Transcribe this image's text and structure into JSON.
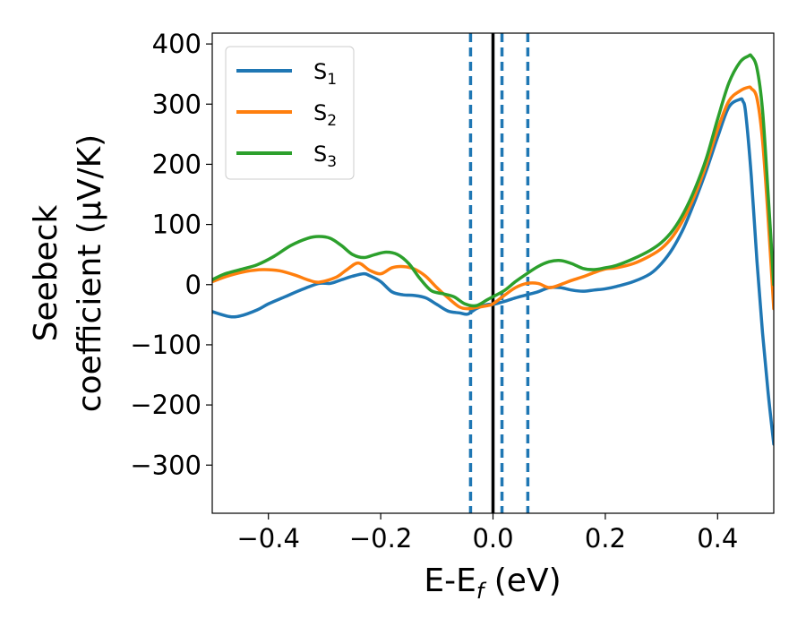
{
  "chart_data": {
    "type": "line",
    "xlabel": {
      "main": "E-E",
      "sub": "f",
      "suffix": " (eV)"
    },
    "ylabel": {
      "line1": "Seebeck",
      "line2": "coefficient  (μV/K)"
    },
    "xlim": [
      -0.5,
      0.5
    ],
    "ylim": [
      -380,
      418
    ],
    "xticks": [
      -0.4,
      -0.2,
      0.0,
      0.2,
      0.4
    ],
    "xtick_labels": [
      "−0.4",
      "−0.2",
      "0.0",
      "0.2",
      "0.4"
    ],
    "yticks": [
      400,
      300,
      200,
      100,
      0,
      -100,
      -200,
      -300
    ],
    "ytick_labels": [
      "400",
      "300",
      "200",
      "100",
      "0",
      "−100",
      "−200",
      "−300"
    ],
    "legend_position": "upper-left",
    "grid": false,
    "series": [
      {
        "name": "S₁",
        "legend_main": "S",
        "legend_sub": "1",
        "color": "#1f77b4",
        "x": [
          -0.5,
          -0.47,
          -0.45,
          -0.42,
          -0.4,
          -0.37,
          -0.34,
          -0.31,
          -0.29,
          -0.27,
          -0.25,
          -0.23,
          -0.22,
          -0.2,
          -0.18,
          -0.16,
          -0.14,
          -0.12,
          -0.1,
          -0.08,
          -0.06,
          -0.045,
          -0.03,
          -0.01,
          0.0,
          0.02,
          0.04,
          0.06,
          0.08,
          0.1,
          0.12,
          0.14,
          0.16,
          0.18,
          0.2,
          0.22,
          0.25,
          0.28,
          0.3,
          0.32,
          0.34,
          0.36,
          0.38,
          0.4,
          0.42,
          0.44,
          0.445,
          0.45,
          0.46,
          0.47,
          0.48,
          0.49,
          0.5
        ],
        "y": [
          -45,
          -53,
          -52,
          -42,
          -32,
          -20,
          -8,
          2,
          2,
          8,
          14,
          18,
          15,
          5,
          -12,
          -17,
          -18,
          -22,
          -33,
          -44,
          -47,
          -49,
          -40,
          -33,
          -33,
          -28,
          -22,
          -17,
          -12,
          -5,
          -5,
          -9,
          -11,
          -9,
          -7,
          -3,
          5,
          18,
          35,
          60,
          95,
          140,
          190,
          245,
          295,
          308,
          305,
          285,
          180,
          40,
          -80,
          -180,
          -265
        ]
      },
      {
        "name": "S₂",
        "legend_main": "S",
        "legend_sub": "2",
        "color": "#ff7f0e",
        "x": [
          -0.5,
          -0.47,
          -0.44,
          -0.41,
          -0.38,
          -0.35,
          -0.33,
          -0.31,
          -0.28,
          -0.26,
          -0.24,
          -0.22,
          -0.2,
          -0.18,
          -0.16,
          -0.14,
          -0.12,
          -0.1,
          -0.08,
          -0.06,
          -0.045,
          -0.03,
          -0.01,
          0.0,
          0.02,
          0.04,
          0.06,
          0.08,
          0.1,
          0.12,
          0.14,
          0.16,
          0.18,
          0.2,
          0.22,
          0.25,
          0.28,
          0.3,
          0.32,
          0.34,
          0.36,
          0.38,
          0.4,
          0.42,
          0.44,
          0.455,
          0.46,
          0.47,
          0.48,
          0.49,
          0.5
        ],
        "y": [
          5,
          15,
          22,
          25,
          23,
          15,
          8,
          4,
          12,
          25,
          36,
          24,
          18,
          28,
          30,
          26,
          14,
          -5,
          -22,
          -37,
          -40,
          -38,
          -35,
          -32,
          -18,
          -5,
          2,
          2,
          -5,
          0,
          7,
          13,
          20,
          26,
          28,
          35,
          48,
          60,
          80,
          110,
          150,
          200,
          258,
          305,
          322,
          328,
          326,
          310,
          240,
          110,
          -40
        ]
      },
      {
        "name": "S₃",
        "legend_main": "S",
        "legend_sub": "3",
        "color": "#2ca02c",
        "x": [
          -0.5,
          -0.48,
          -0.45,
          -0.42,
          -0.39,
          -0.36,
          -0.33,
          -0.31,
          -0.29,
          -0.27,
          -0.25,
          -0.23,
          -0.21,
          -0.19,
          -0.17,
          -0.15,
          -0.13,
          -0.11,
          -0.09,
          -0.07,
          -0.05,
          -0.03,
          -0.01,
          0.0,
          0.02,
          0.04,
          0.06,
          0.08,
          0.1,
          0.12,
          0.14,
          0.16,
          0.18,
          0.2,
          0.22,
          0.25,
          0.28,
          0.3,
          0.32,
          0.34,
          0.36,
          0.38,
          0.4,
          0.42,
          0.44,
          0.455,
          0.46,
          0.47,
          0.48,
          0.49,
          0.5
        ],
        "y": [
          8,
          17,
          25,
          33,
          47,
          65,
          77,
          80,
          77,
          65,
          50,
          45,
          50,
          54,
          50,
          35,
          10,
          -10,
          -15,
          -20,
          -32,
          -35,
          -25,
          -20,
          -10,
          5,
          18,
          30,
          38,
          40,
          35,
          27,
          25,
          28,
          32,
          43,
          57,
          70,
          90,
          120,
          160,
          210,
          275,
          335,
          370,
          380,
          380,
          360,
          290,
          150,
          0
        ]
      }
    ],
    "vlines": [
      {
        "x": -0.04,
        "style": "dashed",
        "color": "#1f77b4"
      },
      {
        "x": 0.0,
        "style": "solid",
        "color": "#000000"
      },
      {
        "x": 0.016,
        "style": "dashed",
        "color": "#1f77b4"
      },
      {
        "x": 0.062,
        "style": "dashed",
        "color": "#1f77b4"
      }
    ]
  }
}
